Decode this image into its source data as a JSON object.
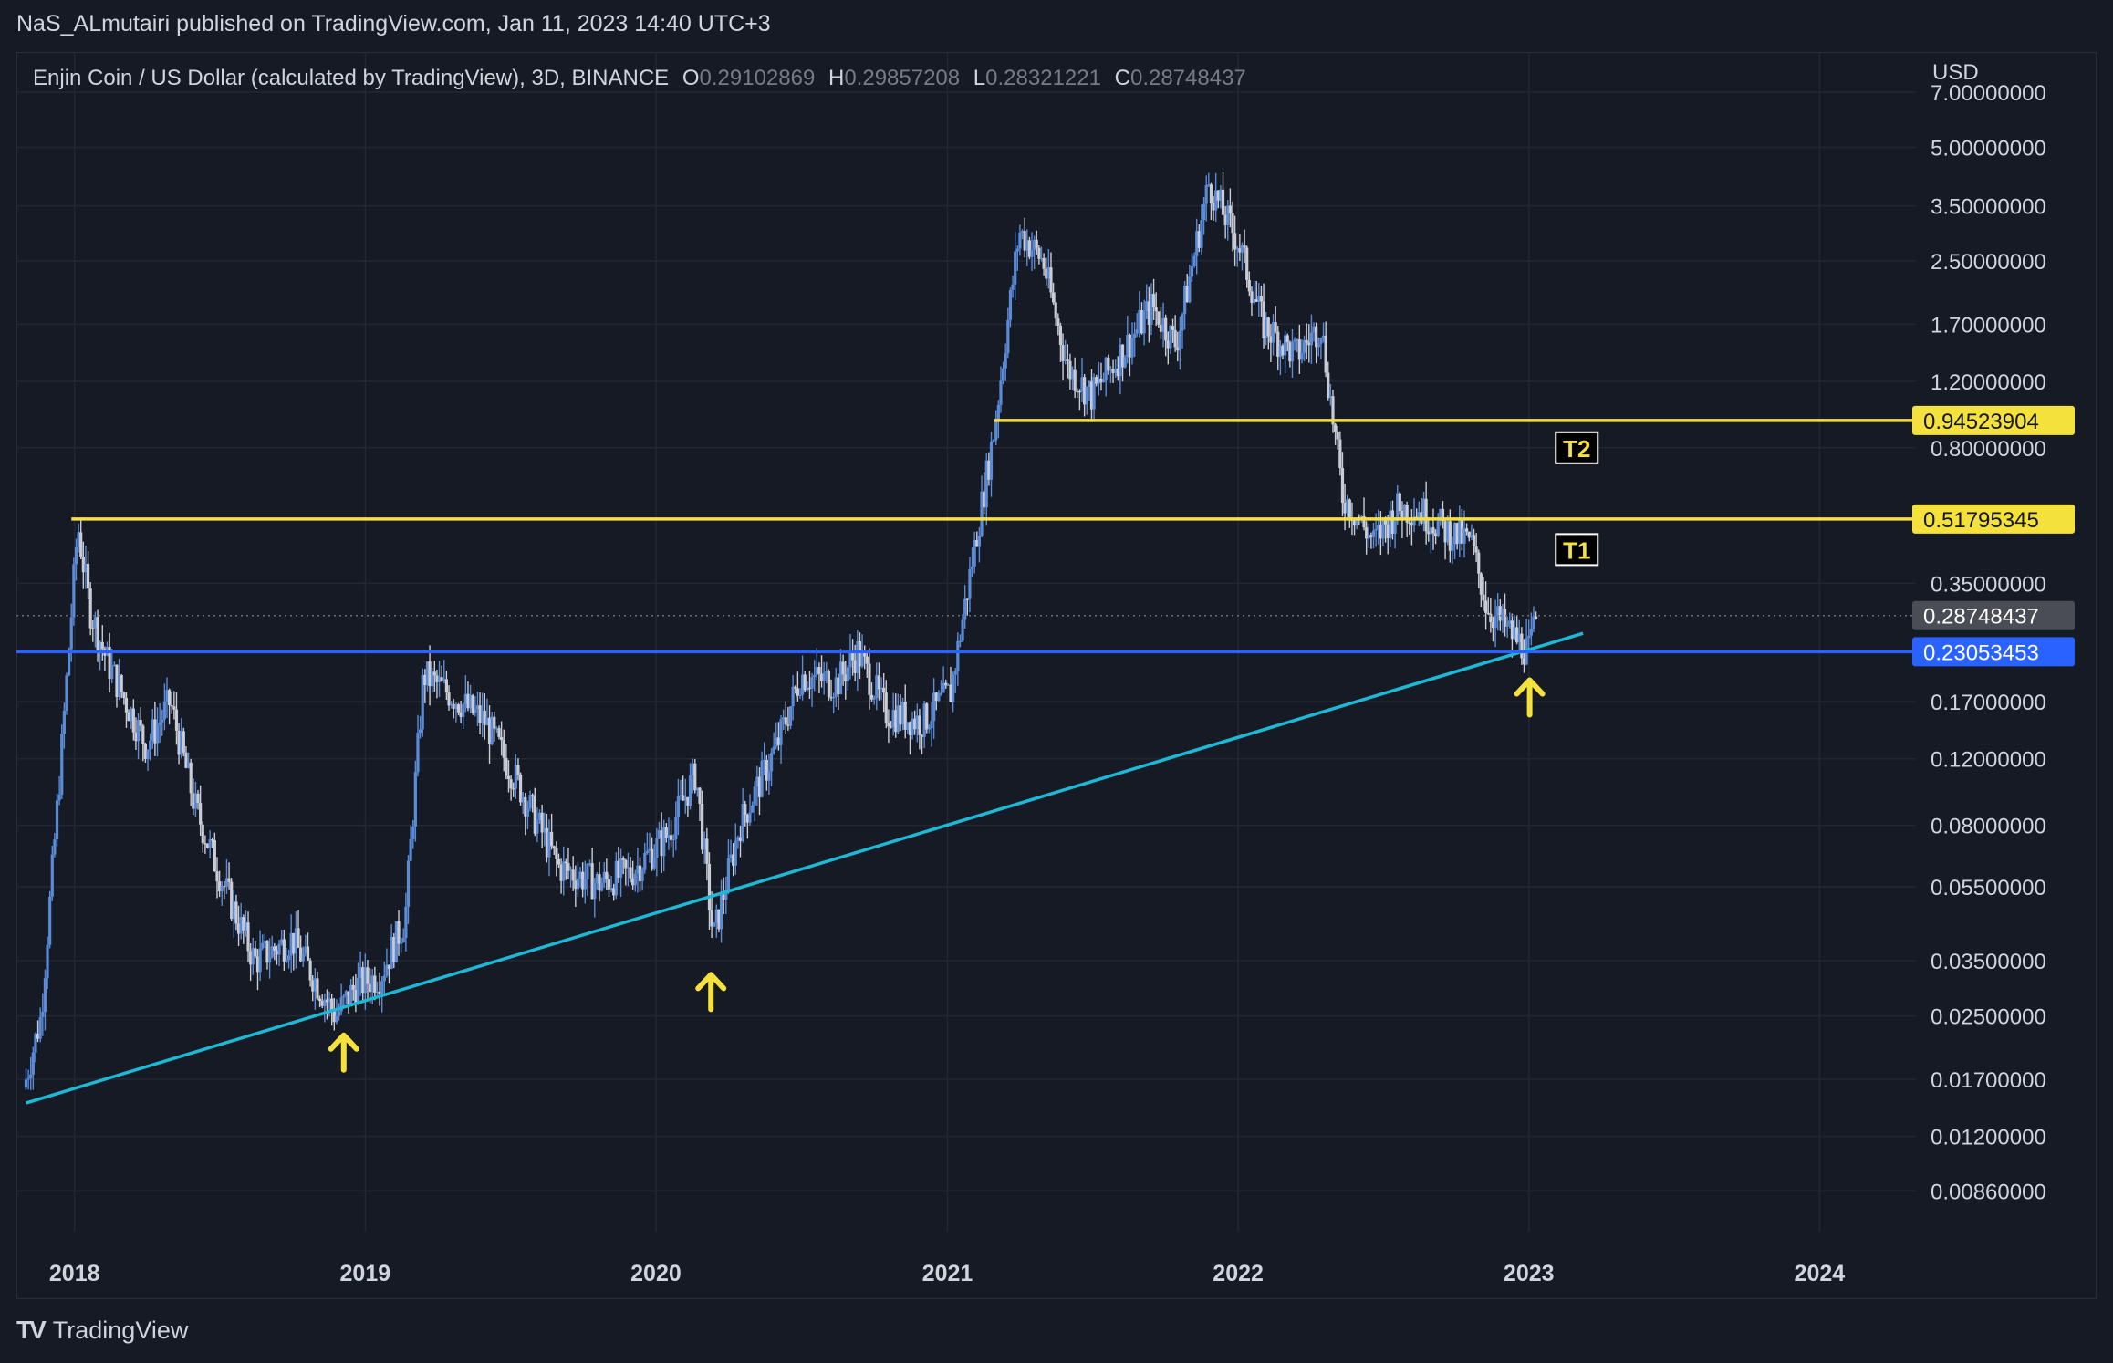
{
  "header": {
    "published_by": "NaS_ALmutairi published on TradingView.com, Jan 11, 2023 14:40 UTC+3"
  },
  "symbol": {
    "title": "Enjin Coin / US Dollar (calculated by TradingView), 3D, BINANCE",
    "o_label": "O",
    "o_value": "0.29102869",
    "h_label": "H",
    "h_value": "0.29857208",
    "l_label": "L",
    "l_value": "0.28321221",
    "c_label": "C",
    "c_value": "0.28748437"
  },
  "currency": "USD",
  "footer": {
    "brand": "TradingView"
  },
  "colors": {
    "background": "#161a25",
    "grid": "#232734",
    "candle_up": "#5b8bd6",
    "candle_down": "#c9ccd4",
    "resistance": "#f5e13c",
    "support": "#2962ff",
    "trendline": "#1fb8d4",
    "arrow": "#f5e13c",
    "current_price_badge": "#4a4d56"
  },
  "chart_data": {
    "type": "candlestick",
    "title": "Enjin Coin / US Dollar (calculated by TradingView), 3D, BINANCE",
    "y_scale": "log",
    "ylim": [
      0.0075,
      8.0
    ],
    "y_ticks": [
      {
        "value": 7.0,
        "label": "7.00000000"
      },
      {
        "value": 5.0,
        "label": "5.00000000"
      },
      {
        "value": 3.5,
        "label": "3.50000000"
      },
      {
        "value": 2.5,
        "label": "2.50000000"
      },
      {
        "value": 1.7,
        "label": "1.70000000"
      },
      {
        "value": 1.2,
        "label": "1.20000000"
      },
      {
        "value": 0.8,
        "label": "0.80000000"
      },
      {
        "value": 0.35,
        "label": "0.35000000"
      },
      {
        "value": 0.17,
        "label": "0.17000000"
      },
      {
        "value": 0.12,
        "label": "0.12000000"
      },
      {
        "value": 0.08,
        "label": "0.08000000"
      },
      {
        "value": 0.055,
        "label": "0.05500000"
      },
      {
        "value": 0.035,
        "label": "0.03500000"
      },
      {
        "value": 0.025,
        "label": "0.02500000"
      },
      {
        "value": 0.017,
        "label": "0.01700000"
      },
      {
        "value": 0.012,
        "label": "0.01200000"
      },
      {
        "value": 0.0086,
        "label": "0.00860000"
      }
    ],
    "x_range": [
      "2017-10-20",
      "2024-05-01"
    ],
    "x_ticks": [
      {
        "date": "2018-01-01",
        "label": "2018"
      },
      {
        "date": "2019-01-01",
        "label": "2019"
      },
      {
        "date": "2020-01-01",
        "label": "2020"
      },
      {
        "date": "2021-01-01",
        "label": "2021"
      },
      {
        "date": "2022-01-01",
        "label": "2022"
      },
      {
        "date": "2023-01-01",
        "label": "2023"
      },
      {
        "date": "2024-01-01",
        "label": "2024"
      }
    ],
    "price_path": [
      [
        "2017-11-01",
        0.017
      ],
      [
        "2017-11-20",
        0.025
      ],
      [
        "2017-12-15",
        0.12
      ],
      [
        "2018-01-05",
        0.5
      ],
      [
        "2018-01-20",
        0.3
      ],
      [
        "2018-02-10",
        0.22
      ],
      [
        "2018-03-01",
        0.18
      ],
      [
        "2018-04-01",
        0.13
      ],
      [
        "2018-05-01",
        0.17
      ],
      [
        "2018-06-01",
        0.09
      ],
      [
        "2018-07-01",
        0.06
      ],
      [
        "2018-08-15",
        0.035
      ],
      [
        "2018-10-01",
        0.04
      ],
      [
        "2018-11-25",
        0.025
      ],
      [
        "2018-12-20",
        0.03
      ],
      [
        "2019-01-20",
        0.032
      ],
      [
        "2019-02-20",
        0.045
      ],
      [
        "2019-03-15",
        0.2
      ],
      [
        "2019-04-15",
        0.18
      ],
      [
        "2019-06-01",
        0.15
      ],
      [
        "2019-07-15",
        0.1
      ],
      [
        "2019-09-01",
        0.062
      ],
      [
        "2019-10-20",
        0.056
      ],
      [
        "2019-12-01",
        0.06
      ],
      [
        "2020-01-15",
        0.075
      ],
      [
        "2020-02-20",
        0.11
      ],
      [
        "2020-03-13",
        0.04
      ],
      [
        "2020-04-15",
        0.08
      ],
      [
        "2020-06-01",
        0.13
      ],
      [
        "2020-07-01",
        0.2
      ],
      [
        "2020-08-15",
        0.19
      ],
      [
        "2020-09-10",
        0.23
      ],
      [
        "2020-10-15",
        0.16
      ],
      [
        "2020-12-01",
        0.15
      ],
      [
        "2021-01-05",
        0.18
      ],
      [
        "2021-02-01",
        0.4
      ],
      [
        "2021-03-01",
        0.9
      ],
      [
        "2021-04-01",
        3.0
      ],
      [
        "2021-05-01",
        2.5
      ],
      [
        "2021-06-01",
        1.3
      ],
      [
        "2021-07-01",
        1.1
      ],
      [
        "2021-08-15",
        1.5
      ],
      [
        "2021-09-15",
        1.9
      ],
      [
        "2021-10-15",
        1.5
      ],
      [
        "2021-11-25",
        4.0
      ],
      [
        "2022-01-01",
        2.8
      ],
      [
        "2022-02-01",
        1.7
      ],
      [
        "2022-03-15",
        1.4
      ],
      [
        "2022-04-15",
        1.7
      ],
      [
        "2022-05-12",
        0.6
      ],
      [
        "2022-06-20",
        0.45
      ],
      [
        "2022-07-20",
        0.55
      ],
      [
        "2022-08-15",
        0.55
      ],
      [
        "2022-09-20",
        0.48
      ],
      [
        "2022-10-20",
        0.45
      ],
      [
        "2022-11-10",
        0.3
      ],
      [
        "2022-12-15",
        0.25
      ],
      [
        "2023-01-01",
        0.23
      ],
      [
        "2023-01-11",
        0.2875
      ]
    ],
    "horizontal_levels": [
      {
        "name": "T2",
        "price": 0.94523904,
        "label": "0.94523904",
        "start": "2021-03-01",
        "color": "#f5e13c"
      },
      {
        "name": "T1",
        "price": 0.51795345,
        "label": "0.51795345",
        "start": "2017-12-28",
        "color": "#f5e13c"
      },
      {
        "name": "Support",
        "price": 0.23053453,
        "label": "0.23053453",
        "start": "2017-10-20",
        "color": "#2962ff"
      }
    ],
    "current_price": {
      "price": 0.28748437,
      "label": "0.28748437"
    },
    "level_tags": [
      {
        "text": "T2",
        "date": "2023-03-01",
        "price": 0.8
      },
      {
        "text": "T1",
        "date": "2023-03-01",
        "price": 0.43
      }
    ],
    "trendline": {
      "start": [
        "2017-11-01",
        0.0147
      ],
      "end": [
        "2023-03-10",
        0.258
      ]
    },
    "arrows": [
      {
        "date": "2018-12-05",
        "price": 0.0235
      },
      {
        "date": "2020-03-10",
        "price": 0.034
      },
      {
        "date": "2023-01-02",
        "price": 0.205
      }
    ]
  }
}
